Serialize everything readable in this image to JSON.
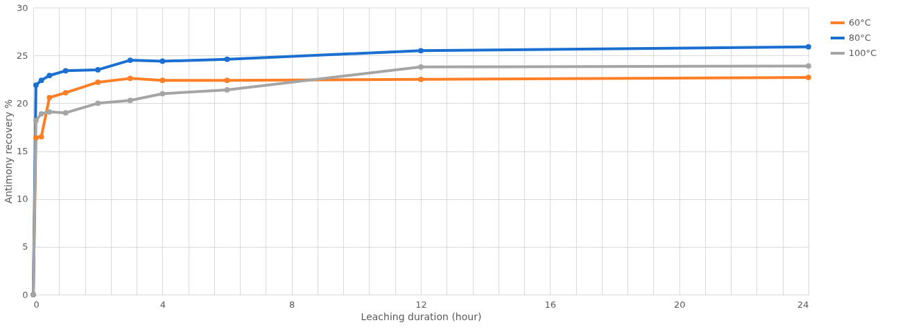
{
  "chart_data": {
    "type": "line",
    "xlabel": "Leaching duration (hour)",
    "ylabel": "Antimony recovery %",
    "x": [
      0,
      0.083,
      0.25,
      0.5,
      1,
      2,
      3,
      4,
      6,
      12,
      24
    ],
    "series": [
      {
        "name": "60°C",
        "color": "#ff7f27",
        "values": [
          0,
          16.4,
          16.5,
          20.6,
          21.1,
          22.2,
          22.6,
          22.4,
          22.4,
          22.5,
          22.7
        ]
      },
      {
        "name": "80°C",
        "color": "#1a6fd0",
        "values": [
          0,
          21.9,
          22.4,
          22.9,
          23.4,
          23.5,
          24.5,
          24.4,
          24.6,
          25.5,
          25.9
        ]
      },
      {
        "name": "100°C",
        "color": "#a5a5a5",
        "values": [
          0,
          18.2,
          18.9,
          19.1,
          19.0,
          20.0,
          20.3,
          21.0,
          21.4,
          23.8,
          23.9
        ]
      }
    ],
    "xlim": [
      0,
      24
    ],
    "xticks": [
      0,
      {
        "value": 0.8,
        "label": null
      },
      {
        "value": 1.6,
        "label": null
      },
      {
        "value": 2.4,
        "label": null
      },
      {
        "value": 3.2,
        "label": null
      },
      4,
      {
        "value": 4.8,
        "label": null
      },
      {
        "value": 5.6,
        "label": null
      },
      {
        "value": 6.4,
        "label": null
      },
      {
        "value": 7.2,
        "label": null
      },
      8,
      {
        "value": 8.8,
        "label": null
      },
      {
        "value": 9.6,
        "label": null
      },
      {
        "value": 10.4,
        "label": null
      },
      {
        "value": 11.2,
        "label": null
      },
      12,
      {
        "value": 12.8,
        "label": null
      },
      {
        "value": 13.6,
        "label": null
      },
      {
        "value": 14.4,
        "label": null
      },
      {
        "value": 15.2,
        "label": null
      },
      16,
      {
        "value": 16.8,
        "label": null
      },
      {
        "value": 17.6,
        "label": null
      },
      {
        "value": 18.4,
        "label": null
      },
      {
        "value": 19.2,
        "label": null
      },
      20,
      {
        "value": 20.8,
        "label": null
      },
      {
        "value": 21.6,
        "label": null
      },
      {
        "value": 22.4,
        "label": null
      },
      {
        "value": 23.2,
        "label": null
      },
      24
    ],
    "ylim": [
      0,
      30
    ],
    "yticks": [
      0,
      5,
      10,
      15,
      20,
      25,
      30
    ],
    "grid": true,
    "legend": "right",
    "marker": "circle",
    "line_style": "solid"
  }
}
